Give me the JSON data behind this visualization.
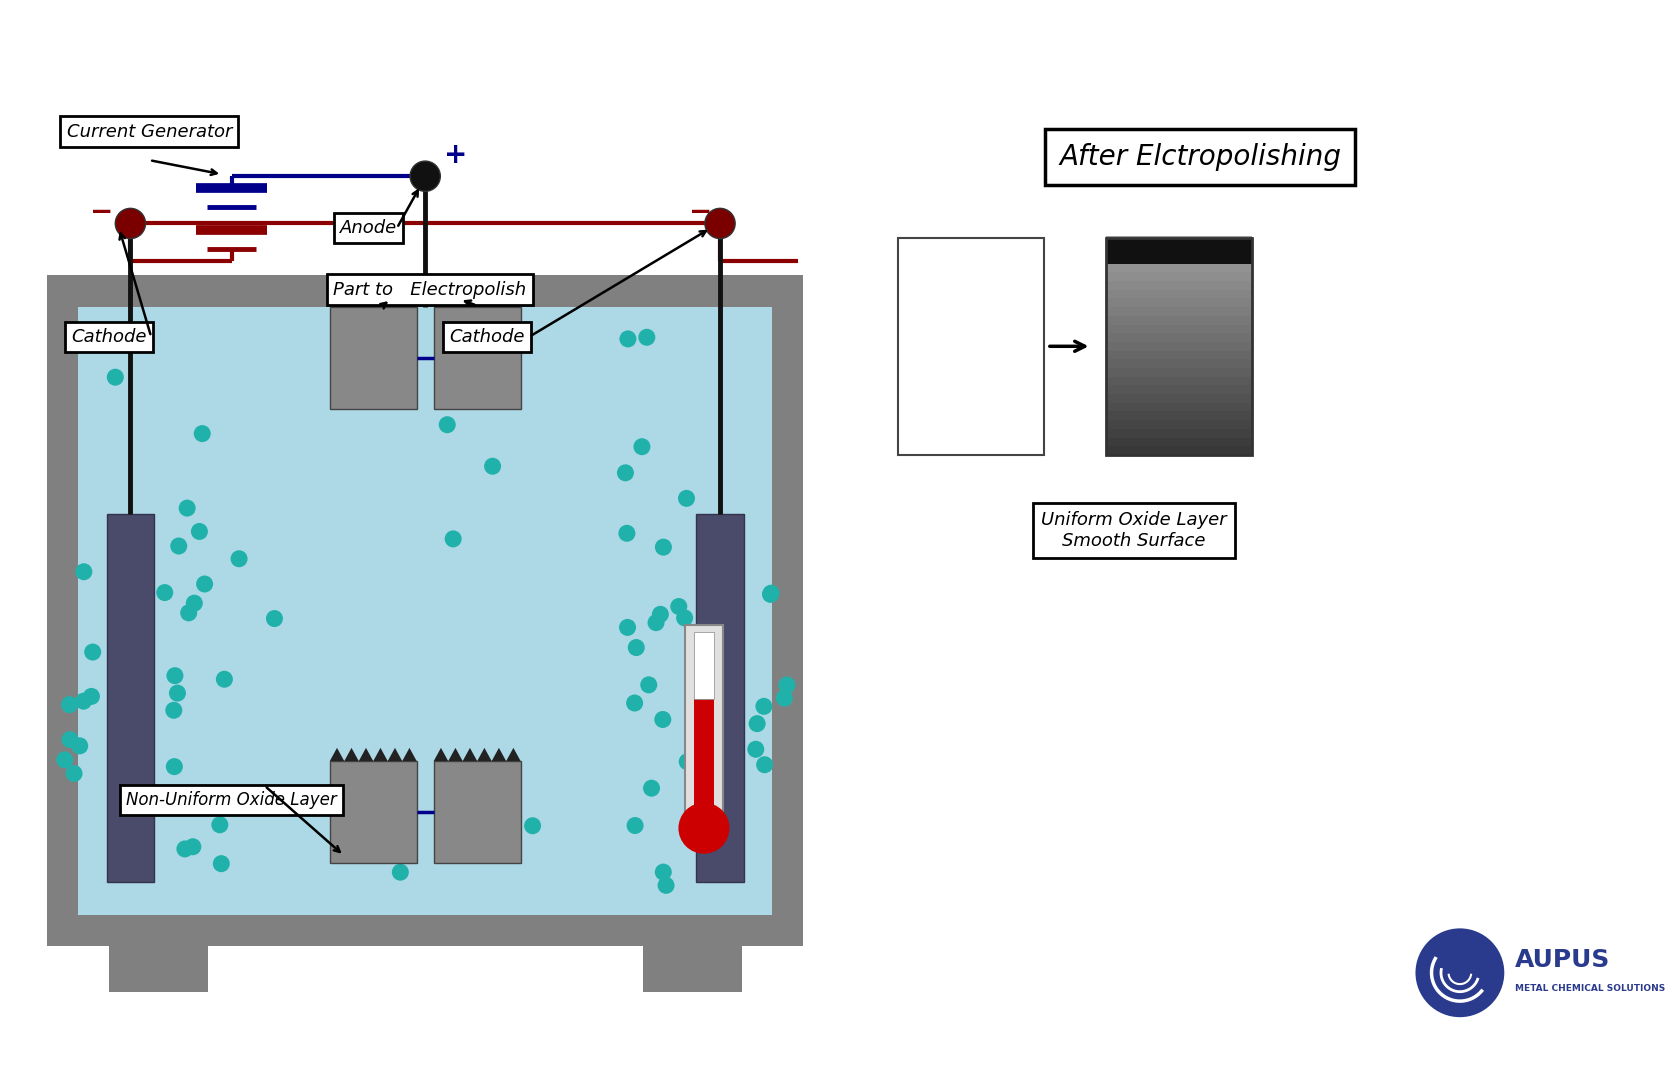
{
  "bg_color": "#ffffff",
  "tank_color": "#808080",
  "liquid_color": "#add8e6",
  "liquid_top_color": "#87ceeb",
  "electrode_color": "#4a4a6a",
  "part_color": "#888888",
  "wire_blue": "#00008B",
  "wire_red": "#8B0000",
  "wire_black": "#111111",
  "bubble_color": "#20b2aa",
  "therm_red": "#cc0000",
  "aupus_blue": "#2a3a8c",
  "label_current_gen": "Current Generator",
  "label_anode": "Anode",
  "label_cathode": "Cathode",
  "label_part": "Part to   Electropolish",
  "label_non_uniform": "Non-Uniform Oxide Layer",
  "label_uniform": "Uniform Oxide Layer\nSmooth Surface",
  "label_after": "After Elctropolishing",
  "label_aupus": "AUPUS",
  "label_metal": "METAL CHEMICAL SOLUTIONS",
  "plus": "+",
  "minus": "−"
}
